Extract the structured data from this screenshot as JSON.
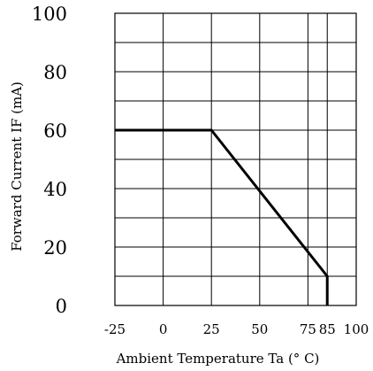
{
  "chart_data": {
    "type": "line",
    "title": "",
    "xlabel": "Ambient Temperature Ta (° C)",
    "ylabel": "Forward Current IF (mA)",
    "xlim": [
      -25,
      100
    ],
    "ylim": [
      0,
      100
    ],
    "x_ticks": [
      -25,
      0,
      25,
      50,
      75,
      85,
      100
    ],
    "y_ticks": [
      0,
      20,
      40,
      60,
      80,
      100
    ],
    "x_grid": [
      0,
      25,
      50,
      75,
      85
    ],
    "y_grid_step": 10,
    "grid": true,
    "series": [
      {
        "x": [
          -25,
          25,
          85,
          85
        ],
        "y": [
          60,
          60,
          10,
          0
        ]
      }
    ]
  }
}
